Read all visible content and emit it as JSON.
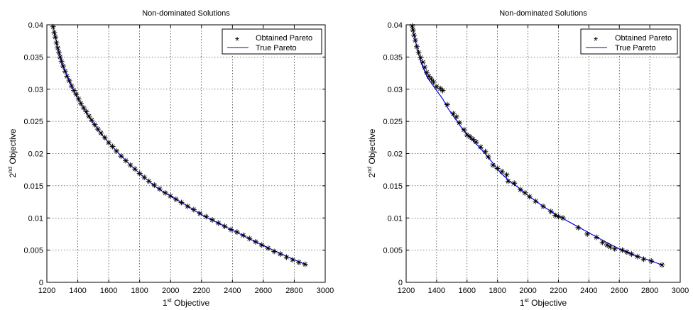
{
  "chart_data": [
    {
      "type": "scatter",
      "title": "Non-dominated Solutions",
      "xlabel": {
        "base": "1",
        "sup": "st",
        "rest": " Objective"
      },
      "ylabel": {
        "base": "2",
        "sup": "nd",
        "rest": " Objective"
      },
      "xlim": [
        1200,
        3000
      ],
      "ylim": [
        0,
        0.04
      ],
      "xticks": [
        "1200",
        "1400",
        "1600",
        "1800",
        "2000",
        "2200",
        "2400",
        "2600",
        "2800",
        "3000"
      ],
      "yticks": [
        "0",
        "0.005",
        "0.01",
        "0.015",
        "0.02",
        "0.025",
        "0.03",
        "0.035",
        "0.04"
      ],
      "grid": true,
      "legend_position": "top-right",
      "series": [
        {
          "name": "Obtained Pareto",
          "marker": "asterisk",
          "color": "#000000",
          "points": [
            [
              1240,
              0.0397
            ],
            [
              1248,
              0.0388
            ],
            [
              1255,
              0.0381
            ],
            [
              1262,
              0.0372
            ],
            [
              1270,
              0.0364
            ],
            [
              1278,
              0.0357
            ],
            [
              1286,
              0.035
            ],
            [
              1295,
              0.0343
            ],
            [
              1305,
              0.0336
            ],
            [
              1318,
              0.0328
            ],
            [
              1330,
              0.032
            ],
            [
              1345,
              0.0313
            ],
            [
              1360,
              0.0305
            ],
            [
              1375,
              0.0298
            ],
            [
              1390,
              0.0292
            ],
            [
              1405,
              0.0285
            ],
            [
              1420,
              0.0278
            ],
            [
              1438,
              0.0271
            ],
            [
              1455,
              0.0265
            ],
            [
              1472,
              0.0258
            ],
            [
              1490,
              0.0252
            ],
            [
              1510,
              0.0245
            ],
            [
              1530,
              0.0238
            ],
            [
              1550,
              0.0232
            ],
            [
              1575,
              0.0225
            ],
            [
              1600,
              0.0217
            ],
            [
              1625,
              0.0211
            ],
            [
              1650,
              0.0204
            ],
            [
              1680,
              0.0196
            ],
            [
              1710,
              0.0189
            ],
            [
              1740,
              0.0182
            ],
            [
              1770,
              0.0176
            ],
            [
              1800,
              0.0169
            ],
            [
              1830,
              0.0163
            ],
            [
              1860,
              0.0157
            ],
            [
              1895,
              0.0151
            ],
            [
              1930,
              0.0145
            ],
            [
              1965,
              0.0139
            ],
            [
              2000,
              0.0134
            ],
            [
              2035,
              0.0129
            ],
            [
              2070,
              0.0124
            ],
            [
              2110,
              0.0118
            ],
            [
              2150,
              0.0113
            ],
            [
              2190,
              0.0107
            ],
            [
              2230,
              0.0102
            ],
            [
              2270,
              0.0097
            ],
            [
              2310,
              0.0092
            ],
            [
              2350,
              0.0087
            ],
            [
              2390,
              0.0082
            ],
            [
              2430,
              0.0078
            ],
            [
              2470,
              0.0073
            ],
            [
              2510,
              0.0068
            ],
            [
              2550,
              0.0063
            ],
            [
              2590,
              0.0058
            ],
            [
              2630,
              0.0053
            ],
            [
              2670,
              0.0048
            ],
            [
              2710,
              0.0044
            ],
            [
              2750,
              0.0039
            ],
            [
              2790,
              0.0035
            ],
            [
              2830,
              0.0031
            ],
            [
              2870,
              0.0028
            ]
          ]
        },
        {
          "name": "True Pareto",
          "marker": "line",
          "color": "#0000ff",
          "points": [
            [
              1240,
              0.0398
            ],
            [
              1270,
              0.0366
            ],
            [
              1300,
              0.0338
            ],
            [
              1340,
              0.0316
            ],
            [
              1380,
              0.0294
            ],
            [
              1420,
              0.0277
            ],
            [
              1460,
              0.0262
            ],
            [
              1500,
              0.0247
            ],
            [
              1550,
              0.0231
            ],
            [
              1600,
              0.0217
            ],
            [
              1650,
              0.0204
            ],
            [
              1700,
              0.0192
            ],
            [
              1750,
              0.018
            ],
            [
              1800,
              0.0169
            ],
            [
              1850,
              0.0159
            ],
            [
              1900,
              0.0149
            ],
            [
              1950,
              0.0141
            ],
            [
              2000,
              0.0134
            ],
            [
              2100,
              0.012
            ],
            [
              2200,
              0.0105
            ],
            [
              2300,
              0.0093
            ],
            [
              2400,
              0.0081
            ],
            [
              2500,
              0.0069
            ],
            [
              2600,
              0.0057
            ],
            [
              2700,
              0.0046
            ],
            [
              2800,
              0.0035
            ],
            [
              2880,
              0.0027
            ]
          ]
        }
      ]
    },
    {
      "type": "scatter",
      "title": "Non-dominated Solutions",
      "xlabel": {
        "base": "1",
        "sup": "st",
        "rest": " Objective"
      },
      "ylabel": {
        "base": "2",
        "sup": "nd",
        "rest": " Objective"
      },
      "xlim": [
        1200,
        3000
      ],
      "ylim": [
        0,
        0.04
      ],
      "xticks": [
        "1200",
        "1400",
        "1600",
        "1800",
        "2000",
        "2200",
        "2400",
        "2600",
        "2800",
        "3000"
      ],
      "yticks": [
        "0",
        "0.005",
        "0.01",
        "0.015",
        "0.02",
        "0.025",
        "0.03",
        "0.035",
        "0.04"
      ],
      "grid": true,
      "legend_position": "top-right",
      "series": [
        {
          "name": "Obtained Pareto",
          "marker": "asterisk",
          "color": "#000000",
          "points": [
            [
              1240,
              0.0398
            ],
            [
              1245,
              0.0392
            ],
            [
              1252,
              0.0384
            ],
            [
              1260,
              0.0376
            ],
            [
              1270,
              0.0366
            ],
            [
              1282,
              0.0357
            ],
            [
              1295,
              0.0349
            ],
            [
              1310,
              0.0342
            ],
            [
              1322,
              0.0334
            ],
            [
              1335,
              0.0326
            ],
            [
              1350,
              0.032
            ],
            [
              1365,
              0.0316
            ],
            [
              1380,
              0.0311
            ],
            [
              1400,
              0.0304
            ],
            [
              1425,
              0.0301
            ],
            [
              1440,
              0.0298
            ],
            [
              1470,
              0.0276
            ],
            [
              1510,
              0.0262
            ],
            [
              1530,
              0.0257
            ],
            [
              1550,
              0.0248
            ],
            [
              1580,
              0.0237
            ],
            [
              1600,
              0.0229
            ],
            [
              1620,
              0.0226
            ],
            [
              1640,
              0.0222
            ],
            [
              1660,
              0.0218
            ],
            [
              1690,
              0.021
            ],
            [
              1720,
              0.0203
            ],
            [
              1740,
              0.0195
            ],
            [
              1770,
              0.0182
            ],
            [
              1800,
              0.0177
            ],
            [
              1830,
              0.0172
            ],
            [
              1860,
              0.0167
            ],
            [
              1870,
              0.0157
            ],
            [
              1910,
              0.0154
            ],
            [
              1950,
              0.0144
            ],
            [
              1980,
              0.0139
            ],
            [
              2010,
              0.0133
            ],
            [
              2050,
              0.0126
            ],
            [
              2100,
              0.0118
            ],
            [
              2150,
              0.011
            ],
            [
              2180,
              0.0104
            ],
            [
              2200,
              0.0102
            ],
            [
              2230,
              0.01
            ],
            [
              2330,
              0.0085
            ],
            [
              2390,
              0.0075
            ],
            [
              2450,
              0.007
            ],
            [
              2490,
              0.0062
            ],
            [
              2520,
              0.0058
            ],
            [
              2540,
              0.0055
            ],
            [
              2570,
              0.0052
            ],
            [
              2620,
              0.005
            ],
            [
              2650,
              0.0047
            ],
            [
              2680,
              0.0044
            ],
            [
              2720,
              0.004
            ],
            [
              2760,
              0.0036
            ],
            [
              2810,
              0.0033
            ],
            [
              2880,
              0.0027
            ]
          ]
        },
        {
          "name": "True Pareto",
          "marker": "line",
          "color": "#0000ff",
          "points": [
            [
              1240,
              0.0398
            ],
            [
              1270,
              0.0366
            ],
            [
              1300,
              0.034
            ],
            [
              1340,
              0.0318
            ],
            [
              1400,
              0.0298
            ],
            [
              1440,
              0.0285
            ],
            [
              1470,
              0.0272
            ],
            [
              1520,
              0.0255
            ],
            [
              1580,
              0.0235
            ],
            [
              1640,
              0.022
            ],
            [
              1700,
              0.0205
            ],
            [
              1760,
              0.0188
            ],
            [
              1820,
              0.017
            ],
            [
              1880,
              0.0157
            ],
            [
              1950,
              0.0145
            ],
            [
              2000,
              0.0135
            ],
            [
              2100,
              0.0118
            ],
            [
              2200,
              0.0103
            ],
            [
              2300,
              0.009
            ],
            [
              2400,
              0.0077
            ],
            [
              2500,
              0.0064
            ],
            [
              2600,
              0.0052
            ],
            [
              2700,
              0.0042
            ],
            [
              2800,
              0.0034
            ],
            [
              2880,
              0.0027
            ]
          ]
        }
      ]
    }
  ]
}
